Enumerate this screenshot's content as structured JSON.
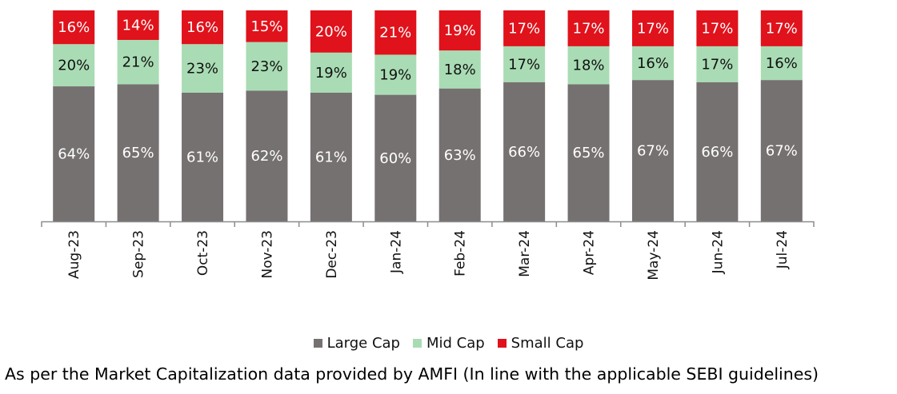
{
  "chart_data": {
    "type": "bar",
    "stacked": true,
    "categories": [
      "Aug-23",
      "Sep-23",
      "Oct-23",
      "Nov-23",
      "Dec-23",
      "Jan-24",
      "Feb-24",
      "Mar-24",
      "Apr-24",
      "May-24",
      "Jun-24",
      "Jul-24"
    ],
    "series": [
      {
        "name": "Large Cap",
        "color": "#767171",
        "label_color": "#ffffff",
        "values": [
          64,
          65,
          61,
          62,
          61,
          60,
          63,
          66,
          65,
          67,
          66,
          67
        ]
      },
      {
        "name": "Mid Cap",
        "color": "#a9dcb4",
        "label_color": "#111111",
        "values": [
          20,
          21,
          23,
          23,
          19,
          19,
          18,
          17,
          18,
          16,
          17,
          16
        ]
      },
      {
        "name": "Small Cap",
        "color": "#e0121b",
        "label_color": "#ffffff",
        "values": [
          16,
          14,
          16,
          15,
          20,
          21,
          19,
          17,
          17,
          17,
          17,
          17
        ]
      }
    ],
    "value_suffix": "%",
    "ylim": [
      0,
      100
    ],
    "grid": false,
    "legend_position": "bottom"
  },
  "footnote": "As per the Market Capitalization data provided by AMFI (In line with the applicable SEBI guidelines)"
}
